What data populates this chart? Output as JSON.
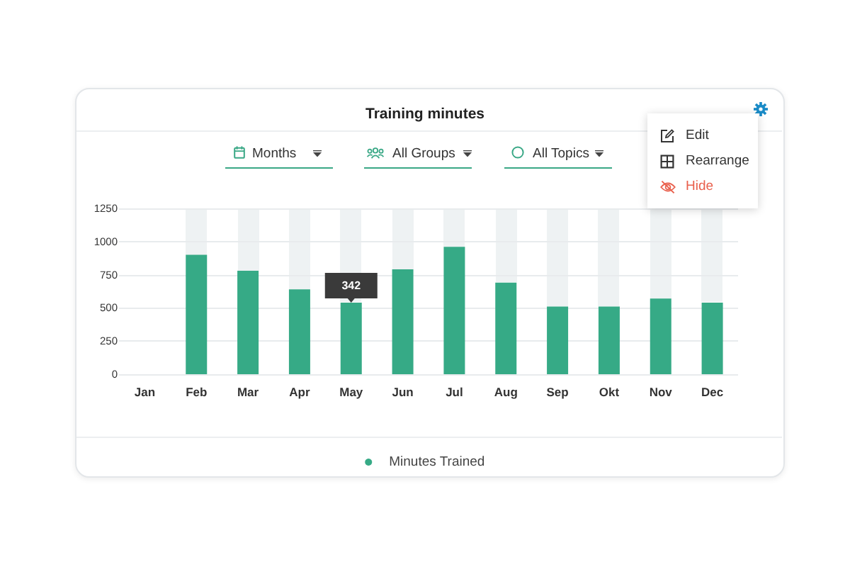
{
  "chart_data": {
    "type": "bar",
    "title": "Training minutes",
    "categories": [
      "Jan",
      "Feb",
      "Mar",
      "Apr",
      "May",
      "Jun",
      "Jul",
      "Aug",
      "Sep",
      "Okt",
      "Nov",
      "Dec"
    ],
    "series": [
      {
        "name": "Minutes Trained",
        "color": "#36aa86",
        "values": [
          0,
          900,
          780,
          640,
          540,
          790,
          960,
          690,
          510,
          510,
          570,
          540
        ]
      }
    ],
    "ylim": [
      0,
      1250
    ],
    "yticks": [
      0,
      250,
      500,
      750,
      1000,
      1250
    ],
    "grid": "y",
    "legend": "bottom",
    "annotations": [
      {
        "text": "342",
        "x": "May",
        "y": 540
      },
      "Months",
      "All Groups",
      "All Topics",
      "Edit",
      "Rearrange",
      "Hide"
    ]
  }
}
